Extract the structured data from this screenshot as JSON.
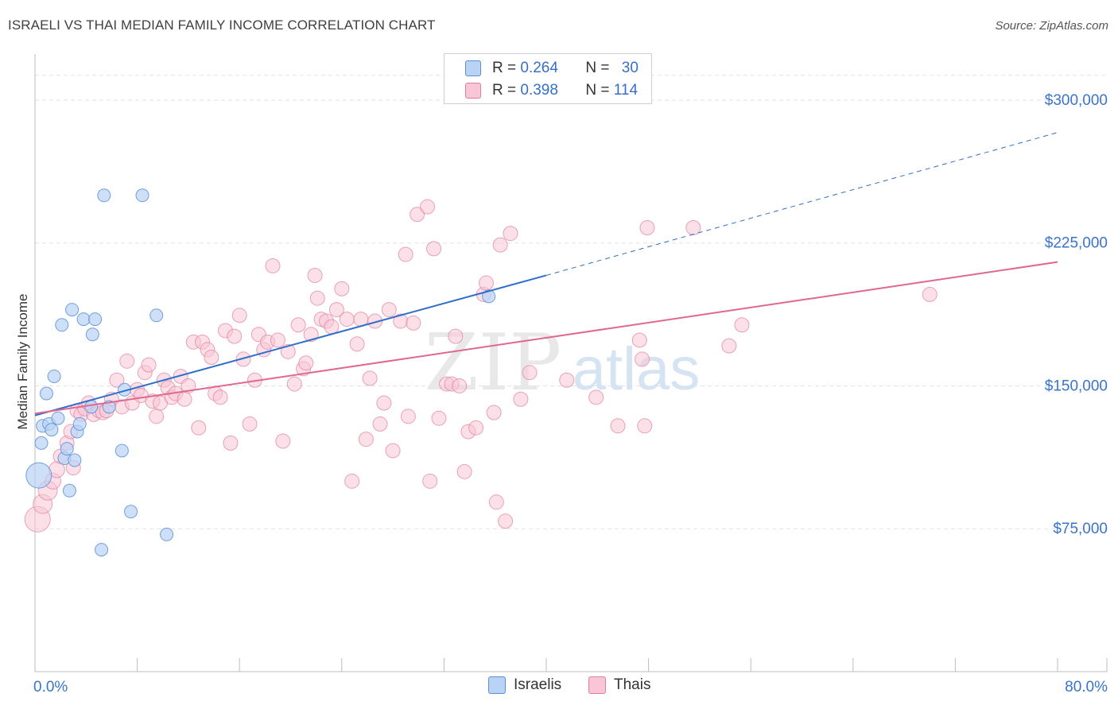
{
  "title": "ISRAELI VS THAI MEDIAN FAMILY INCOME CORRELATION CHART",
  "source": "Source: ZipAtlas.com",
  "legend": {
    "israelis": {
      "r_label": "R = ",
      "r_value": "0.264",
      "n_label": "N = ",
      "n_value": "30"
    },
    "thais": {
      "r_label": "R = ",
      "r_value": "0.398",
      "n_label": "N = ",
      "n_value": "114"
    }
  },
  "bottom_legend": {
    "israelis": "Israelis",
    "thais": "Thais"
  },
  "colors": {
    "israelis_fill": "#b9d3f5",
    "israelis_stroke": "#5b8fd8",
    "israelis_line": "#2f6fcb",
    "thais_fill": "#f8c6d6",
    "thais_stroke": "#e07ea0",
    "thais_line": "#e06890",
    "tick_text": "#3a74c8",
    "grid": "#e2e2e2",
    "watermark": "#e6e6e6"
  },
  "chart_data": {
    "type": "scatter",
    "title": "ISRAELI VS THAI MEDIAN FAMILY INCOME CORRELATION CHART",
    "xlabel": "",
    "ylabel": "Median Family Income",
    "xlim": [
      0,
      80
    ],
    "ylim": [
      0,
      320000
    ],
    "x_tick_labels": [
      "0.0%",
      "80.0%"
    ],
    "y_ticks": [
      75000,
      150000,
      225000,
      300000
    ],
    "y_tick_labels": [
      "$75,000",
      "$150,000",
      "$225,000",
      "$300,000"
    ],
    "grid": true,
    "legend_position": "top-center",
    "watermark": {
      "zip": "ZIP",
      "atlas": "atlas"
    },
    "series": [
      {
        "name": "Israelis",
        "r": 0.264,
        "n": 30,
        "trend": {
          "x0": 0,
          "y0": 134500,
          "x1": 40.0,
          "y1": 208000,
          "dash_x1": 80,
          "dash_y1": 283000
        },
        "points": [
          [
            0.3,
            103000,
            16
          ],
          [
            0.5,
            120000,
            8
          ],
          [
            0.6,
            129000,
            8
          ],
          [
            0.9,
            146000,
            8
          ],
          [
            1.1,
            130000,
            8
          ],
          [
            1.3,
            127000,
            8
          ],
          [
            1.5,
            155000,
            8
          ],
          [
            1.8,
            133000,
            8
          ],
          [
            2.1,
            182000,
            8
          ],
          [
            2.3,
            112000,
            8
          ],
          [
            2.5,
            117000,
            8
          ],
          [
            2.7,
            95000,
            8
          ],
          [
            2.9,
            190000,
            8
          ],
          [
            3.1,
            111000,
            8
          ],
          [
            3.3,
            126000,
            8
          ],
          [
            3.5,
            130000,
            8
          ],
          [
            3.8,
            185000,
            8
          ],
          [
            4.5,
            177000,
            8
          ],
          [
            4.7,
            185000,
            8
          ],
          [
            5.2,
            64000,
            8
          ],
          [
            5.4,
            250000,
            8
          ],
          [
            5.8,
            139000,
            8
          ],
          [
            6.8,
            116000,
            8
          ],
          [
            7.0,
            148000,
            8
          ],
          [
            7.5,
            84000,
            8
          ],
          [
            8.4,
            250000,
            8
          ],
          [
            9.5,
            187000,
            8
          ],
          [
            10.3,
            72000,
            8
          ],
          [
            35.5,
            197000,
            8
          ],
          [
            4.4,
            139000,
            8
          ]
        ]
      },
      {
        "name": "Thais",
        "r": 0.398,
        "n": 114,
        "trend": {
          "x0": 0,
          "y0": 135500,
          "x1": 80,
          "y1": 215000
        },
        "points": [
          [
            0.2,
            80000,
            16
          ],
          [
            0.6,
            88000,
            12
          ],
          [
            1.0,
            95000,
            12
          ],
          [
            1.4,
            100000,
            10
          ],
          [
            1.7,
            106000,
            10
          ],
          [
            2.0,
            113000,
            9
          ],
          [
            2.5,
            120000,
            9
          ],
          [
            2.8,
            126000,
            9
          ],
          [
            3.0,
            107000,
            9
          ],
          [
            3.3,
            137000,
            9
          ],
          [
            3.6,
            135000,
            9
          ],
          [
            3.9,
            138000,
            9
          ],
          [
            4.2,
            141000,
            9
          ],
          [
            4.6,
            135000,
            9
          ],
          [
            5.0,
            137000,
            9
          ],
          [
            5.3,
            136000,
            9
          ],
          [
            5.6,
            137000,
            9
          ],
          [
            6.0,
            143000,
            9
          ],
          [
            6.4,
            153000,
            9
          ],
          [
            6.8,
            139000,
            9
          ],
          [
            7.2,
            163000,
            9
          ],
          [
            7.6,
            141000,
            9
          ],
          [
            8.0,
            148000,
            9
          ],
          [
            8.3,
            145000,
            9
          ],
          [
            8.6,
            157000,
            9
          ],
          [
            8.9,
            161000,
            9
          ],
          [
            9.2,
            142000,
            9
          ],
          [
            9.5,
            134000,
            9
          ],
          [
            9.8,
            141000,
            9
          ],
          [
            10.1,
            153000,
            9
          ],
          [
            10.4,
            149000,
            9
          ],
          [
            10.7,
            144000,
            9
          ],
          [
            11.0,
            146000,
            9
          ],
          [
            11.4,
            155000,
            9
          ],
          [
            11.7,
            143000,
            9
          ],
          [
            12.0,
            150000,
            9
          ],
          [
            12.4,
            173000,
            9
          ],
          [
            12.8,
            128000,
            9
          ],
          [
            13.1,
            173000,
            9
          ],
          [
            13.5,
            169000,
            9
          ],
          [
            13.8,
            165000,
            9
          ],
          [
            14.1,
            146000,
            9
          ],
          [
            14.5,
            144000,
            9
          ],
          [
            14.9,
            179000,
            9
          ],
          [
            15.3,
            120000,
            9
          ],
          [
            15.6,
            176000,
            9
          ],
          [
            16.0,
            187000,
            9
          ],
          [
            16.3,
            164000,
            9
          ],
          [
            16.8,
            130000,
            9
          ],
          [
            17.2,
            153000,
            9
          ],
          [
            17.5,
            177000,
            9
          ],
          [
            17.9,
            169000,
            9
          ],
          [
            18.2,
            173000,
            9
          ],
          [
            18.6,
            213000,
            9
          ],
          [
            19.0,
            174000,
            9
          ],
          [
            19.4,
            121000,
            9
          ],
          [
            19.8,
            168000,
            9
          ],
          [
            20.3,
            151000,
            9
          ],
          [
            20.6,
            182000,
            9
          ],
          [
            21.0,
            159000,
            9
          ],
          [
            21.2,
            162000,
            9
          ],
          [
            21.6,
            177000,
            9
          ],
          [
            21.9,
            208000,
            9
          ],
          [
            22.1,
            196000,
            9
          ],
          [
            22.4,
            185000,
            9
          ],
          [
            22.8,
            184000,
            9
          ],
          [
            23.2,
            181000,
            9
          ],
          [
            23.6,
            190000,
            9
          ],
          [
            24.0,
            201000,
            9
          ],
          [
            24.4,
            185000,
            9
          ],
          [
            24.8,
            100000,
            9
          ],
          [
            25.2,
            172000,
            9
          ],
          [
            25.5,
            185000,
            9
          ],
          [
            25.9,
            122000,
            9
          ],
          [
            26.2,
            154000,
            9
          ],
          [
            26.6,
            184000,
            9
          ],
          [
            27.0,
            130000,
            9
          ],
          [
            27.3,
            141000,
            9
          ],
          [
            27.7,
            190000,
            9
          ],
          [
            28.0,
            116000,
            9
          ],
          [
            28.6,
            184000,
            9
          ],
          [
            29.0,
            219000,
            9
          ],
          [
            29.2,
            134000,
            9
          ],
          [
            29.6,
            183000,
            9
          ],
          [
            29.9,
            240000,
            9
          ],
          [
            30.7,
            244000,
            9
          ],
          [
            30.9,
            100000,
            9
          ],
          [
            31.2,
            222000,
            9
          ],
          [
            31.6,
            133000,
            9
          ],
          [
            32.2,
            151000,
            9
          ],
          [
            32.6,
            151000,
            9
          ],
          [
            32.9,
            176000,
            9
          ],
          [
            33.2,
            150000,
            9
          ],
          [
            33.6,
            105000,
            9
          ],
          [
            33.9,
            126000,
            9
          ],
          [
            34.5,
            128000,
            9
          ],
          [
            35.1,
            198000,
            9
          ],
          [
            35.3,
            204000,
            9
          ],
          [
            35.9,
            136000,
            9
          ],
          [
            36.1,
            89000,
            9
          ],
          [
            36.4,
            224000,
            9
          ],
          [
            36.8,
            79000,
            9
          ],
          [
            37.2,
            230000,
            9
          ],
          [
            38.0,
            143000,
            9
          ],
          [
            38.7,
            157000,
            9
          ],
          [
            41.6,
            153000,
            9
          ],
          [
            43.9,
            144000,
            9
          ],
          [
            45.6,
            129000,
            9
          ],
          [
            47.3,
            174000,
            9
          ],
          [
            47.5,
            164000,
            9
          ],
          [
            47.7,
            129000,
            9
          ],
          [
            47.9,
            233000,
            9
          ],
          [
            51.5,
            233000,
            9
          ],
          [
            54.3,
            171000,
            9
          ],
          [
            55.3,
            182000,
            9
          ],
          [
            70.0,
            198000,
            9
          ]
        ]
      }
    ]
  }
}
